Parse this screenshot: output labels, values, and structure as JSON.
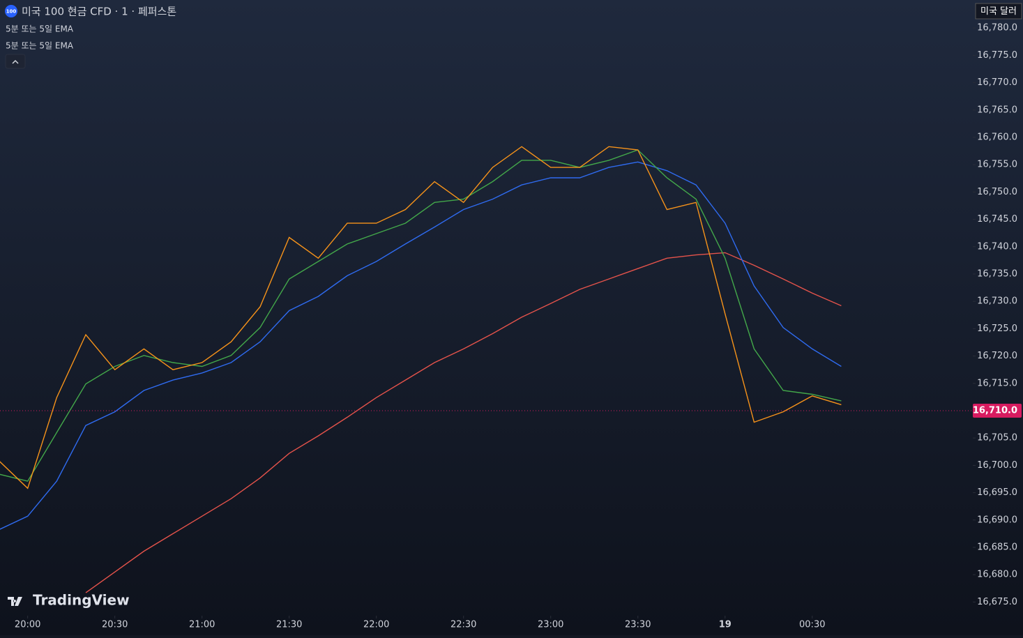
{
  "chart_data": {
    "type": "line",
    "title": "미국 100 현금 CFD · 1 · 페퍼스톤",
    "symbol_badge": "100",
    "indicators": [
      "5분 또는 5일 EMA",
      "5분 또는 5일 EMA"
    ],
    "currency": "미국 달러",
    "brand": "TradingView",
    "x": [
      "19:50",
      "20:00",
      "20:10",
      "20:20",
      "20:30",
      "20:40",
      "20:50",
      "21:00",
      "21:10",
      "21:20",
      "21:30",
      "21:40",
      "21:50",
      "22:00",
      "22:10",
      "22:20",
      "22:30",
      "22:40",
      "22:50",
      "23:00",
      "23:10",
      "23:20",
      "23:30",
      "23:40",
      "23:50",
      "00:00",
      "00:10",
      "00:20",
      "00:30",
      "00:40"
    ],
    "xticks": [
      "20:00",
      "20:30",
      "21:00",
      "21:30",
      "22:00",
      "22:30",
      "23:00",
      "23:30",
      {
        "value": "00:00",
        "label": "19"
      },
      "00:30"
    ],
    "series": [
      {
        "color": "#e5534b",
        "values": [
          null,
          null,
          null,
          16676.7,
          16680.5,
          16684.3,
          16687.5,
          16690.7,
          16693.9,
          16697.7,
          16702.2,
          16705.4,
          16708.8,
          16712.4,
          16715.6,
          16718.8,
          16721.3,
          16724.1,
          16727.1,
          16729.6,
          16732.2,
          16734.1,
          16736.0,
          16737.9,
          16738.5,
          16738.9,
          16736.6,
          16734.1,
          16731.5,
          16729.2
        ]
      },
      {
        "color": "#2f6bf0",
        "values": [
          16688.2,
          16690.7,
          16697.1,
          16707.3,
          16709.8,
          16713.7,
          16715.6,
          16716.9,
          16718.8,
          16722.6,
          16728.3,
          16730.9,
          16734.7,
          16737.3,
          16740.5,
          16743.6,
          16746.8,
          16748.7,
          16751.3,
          16752.6,
          16752.6,
          16754.5,
          16755.5,
          16753.9,
          16751.3,
          16744.3,
          16732.8,
          16725.2,
          16721.3,
          16718.1
        ]
      },
      {
        "color": "#43a84a",
        "values": [
          16698.4,
          16697.1,
          16706.0,
          16714.9,
          16718.1,
          16720.1,
          16718.8,
          16718.1,
          16720.1,
          16725.2,
          16734.1,
          16737.3,
          16740.5,
          16742.4,
          16744.3,
          16748.1,
          16748.7,
          16751.9,
          16755.8,
          16755.8,
          16754.5,
          16755.8,
          16757.7,
          16752.6,
          16748.7,
          16737.9,
          16721.3,
          16713.7,
          16713.0,
          16711.8
        ]
      },
      {
        "color": "#f7931a",
        "values": [
          16700.9,
          16695.8,
          16712.4,
          16723.9,
          16717.5,
          16721.3,
          16717.5,
          16718.8,
          16722.6,
          16729.0,
          16741.7,
          16737.9,
          16744.3,
          16744.3,
          16746.8,
          16751.9,
          16748.1,
          16754.5,
          16758.3,
          16754.5,
          16754.5,
          16758.3,
          16757.7,
          16746.8,
          16748.1,
          16727.7,
          16707.9,
          16709.8,
          16712.7,
          16711.1
        ]
      }
    ],
    "ylim": [
      16672.5,
      16785
    ],
    "yticks": [
      {
        "value": 16675,
        "label": "16,675.0"
      },
      {
        "value": 16680,
        "label": "16,680.0"
      },
      {
        "value": 16685,
        "label": "16,685.0"
      },
      {
        "value": 16690,
        "label": "16,690.0"
      },
      {
        "value": 16695,
        "label": "16,695.0"
      },
      {
        "value": 16700,
        "label": "16,700.0"
      },
      {
        "value": 16705,
        "label": "16,705.0"
      },
      {
        "value": 16715,
        "label": "16,715.0"
      },
      {
        "value": 16720,
        "label": "16,720.0"
      },
      {
        "value": 16725,
        "label": "16,725.0"
      },
      {
        "value": 16730,
        "label": "16,730.0"
      },
      {
        "value": 16735,
        "label": "16,735.0"
      },
      {
        "value": 16740,
        "label": "16,740.0"
      },
      {
        "value": 16745,
        "label": "16,745.0"
      },
      {
        "value": 16750,
        "label": "16,750.0"
      },
      {
        "value": 16755,
        "label": "16,755.0"
      },
      {
        "value": 16760,
        "label": "16,760.0"
      },
      {
        "value": 16765,
        "label": "16,765.0"
      },
      {
        "value": 16770,
        "label": "16,770.0"
      },
      {
        "value": 16775,
        "label": "16,775.0"
      },
      {
        "value": 16780,
        "label": "16,780.0"
      }
    ],
    "last_price": {
      "value": 16710,
      "label": "16,710.0",
      "color": "#d81b60"
    }
  }
}
